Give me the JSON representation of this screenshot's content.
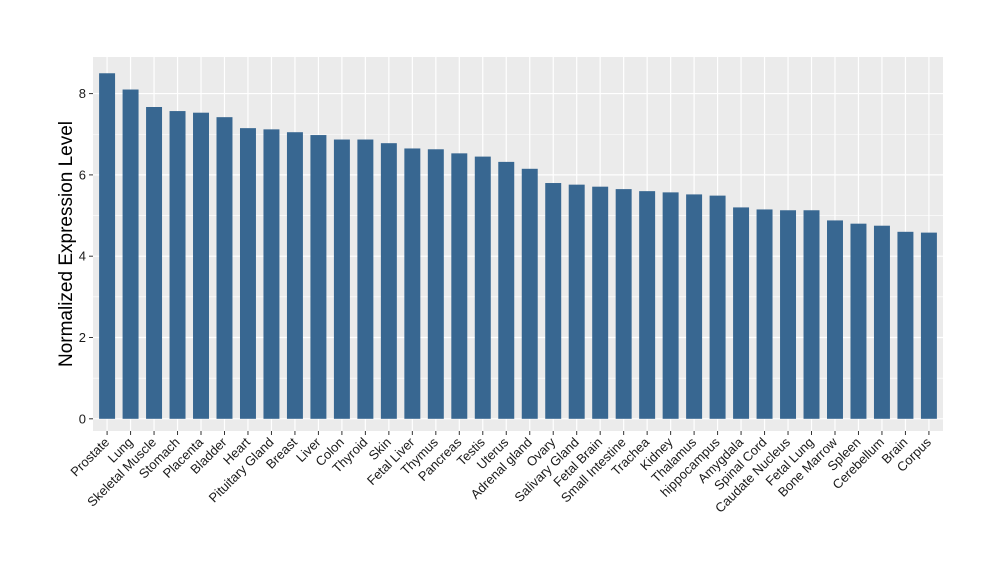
{
  "chart_data": {
    "type": "bar",
    "ylabel": "Normalized Expression Level",
    "xlabel": "",
    "title": "",
    "ylim": [
      -0.3,
      8.9
    ],
    "yticks": [
      0,
      2,
      4,
      6,
      8
    ],
    "grid": true,
    "bar_color": "#386791",
    "panel_color": "#ebebeb",
    "categories": [
      "Prostate",
      "Lung",
      "Skeletal Muscle",
      "Stomach",
      "Placenta",
      "Bladder",
      "Heart",
      "Pituitary Gland",
      "Breast",
      "Liver",
      "Colon",
      "Thyroid",
      "Skin",
      "Fetal Liver",
      "Thymus",
      "Pancreas",
      "Testis",
      "Uterus",
      "Adrenal gland",
      "Ovary",
      "Salivary Gland",
      "Fetal Brain",
      "Small Intestine",
      "Trachea",
      "Kidney",
      "Thalamus",
      "hippocampus",
      "Amygdala",
      "Spinal Cord",
      "Caudate Nucleus",
      "Fetal Lung",
      "Bone Marrow",
      "Spleen",
      "Cerebellum",
      "Brain",
      "Corpus"
    ],
    "values": [
      8.5,
      8.1,
      7.67,
      7.57,
      7.53,
      7.42,
      7.15,
      7.12,
      7.05,
      6.98,
      6.87,
      6.87,
      6.78,
      6.65,
      6.63,
      6.53,
      6.45,
      6.32,
      6.15,
      5.8,
      5.76,
      5.71,
      5.65,
      5.6,
      5.57,
      5.52,
      5.49,
      5.2,
      5.15,
      5.13,
      5.13,
      4.88,
      4.8,
      4.75,
      4.6,
      4.58
    ]
  }
}
